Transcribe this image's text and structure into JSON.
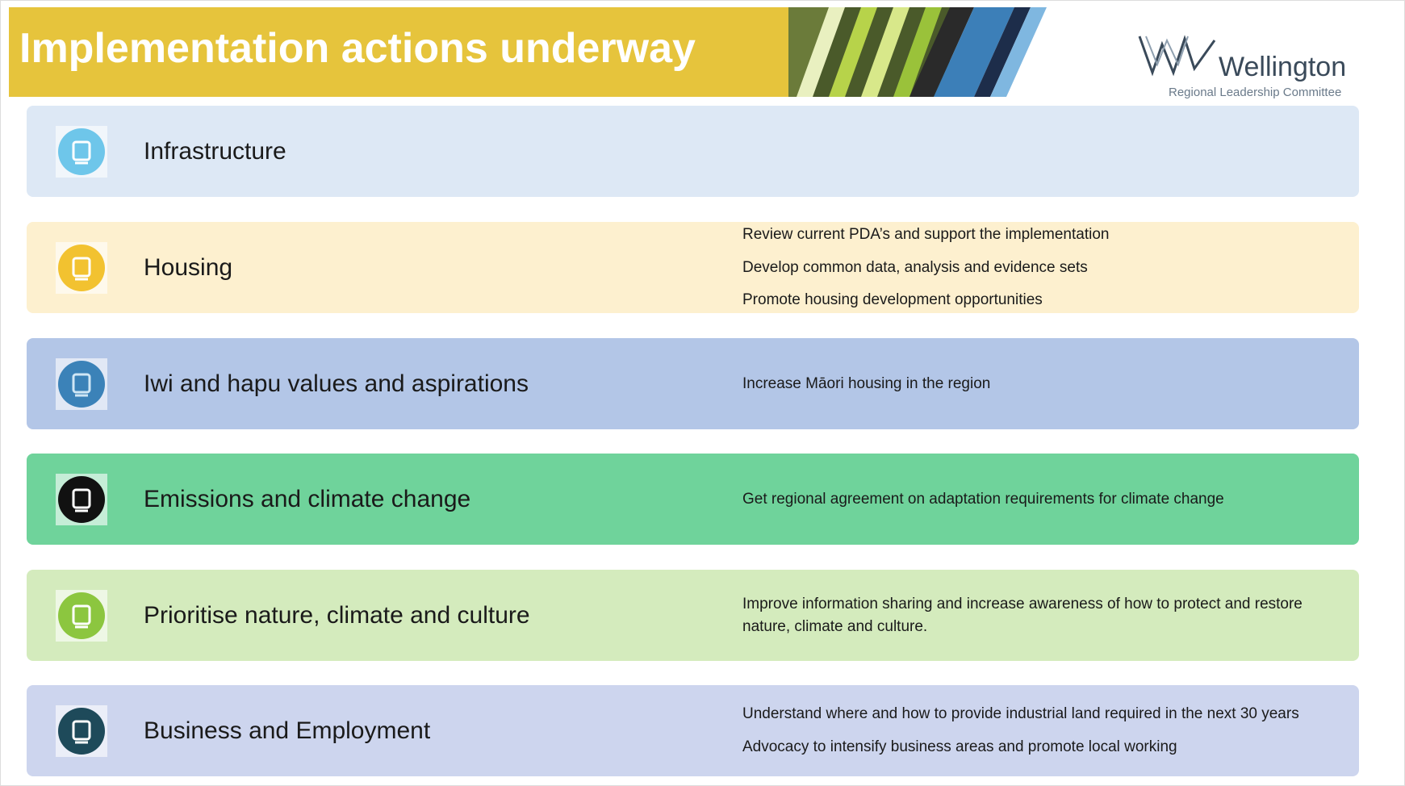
{
  "header": {
    "title": "Implementation actions underway"
  },
  "logo": {
    "name": "Wellington",
    "subtitle": "Regional Leadership Committee"
  },
  "rows": [
    {
      "label": "Infrastructure",
      "actions": []
    },
    {
      "label": "Housing",
      "actions": [
        "Review current PDA’s and support the implementation",
        "Develop common data, analysis and evidence sets",
        "Promote housing development opportunities"
      ]
    },
    {
      "label": "Iwi and hapu values and aspirations",
      "actions": [
        "Increase Māori housing in the region"
      ]
    },
    {
      "label": "Emissions and climate change",
      "actions": [
        "Get regional agreement on adaptation requirements for climate change"
      ]
    },
    {
      "label": "Prioritise nature, climate and culture",
      "actions": [
        "Improve information sharing and increase awareness of how to protect and restore nature, climate and culture."
      ]
    },
    {
      "label": "Business and Employment",
      "actions": [
        "Understand where and how to provide industrial land required in the next 30 years",
        "Advocacy to intensify business areas and promote local working"
      ]
    }
  ]
}
